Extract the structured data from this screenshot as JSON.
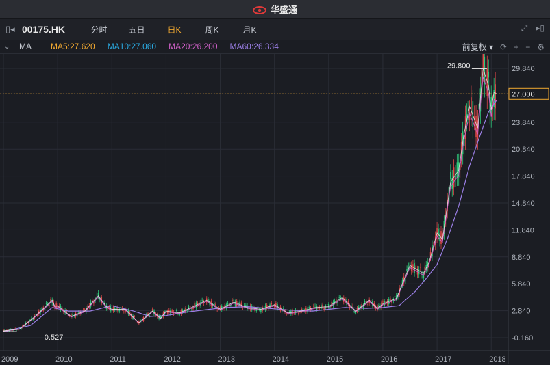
{
  "app": {
    "title": "华盛通"
  },
  "header": {
    "symbol": "00175.HK",
    "tabs": [
      "分时",
      "五日",
      "日K",
      "周K",
      "月K"
    ],
    "active_tab": "日K"
  },
  "indicators": {
    "name": "MA",
    "ma5": "MA5:27.620",
    "ma10": "MA10:27.060",
    "ma20": "MA20:26.200",
    "ma60": "MA60:26.334",
    "adjust": "前复权"
  },
  "colors": {
    "ma5": "#f0a830",
    "ma10": "#2aa9e0",
    "ma20": "#d060c8",
    "ma60": "#9b7fe6",
    "up": "#e04848",
    "down": "#2ec87a",
    "active_tab": "#f0a830",
    "last_price": "#f0a830"
  },
  "chart_data": {
    "type": "line",
    "y_ticks": [
      "29.840",
      "27.000",
      "23.840",
      "20.840",
      "17.840",
      "14.840",
      "11.840",
      "8.840",
      "5.840",
      "2.840",
      "-0.160"
    ],
    "ylim": [
      -0.16,
      30.6
    ],
    "x_ticks": [
      "2009",
      "2010",
      "2011",
      "2012",
      "2013",
      "2014",
      "2015",
      "2016",
      "2017",
      "2018"
    ],
    "annotations": {
      "high": "29.800",
      "low": "0.527",
      "last_price": "27.000"
    },
    "series": [
      {
        "key": "price",
        "x": [
          2009.0,
          2009.3,
          2009.6,
          2009.9,
          2009.95,
          2010.0,
          2010.25,
          2010.5,
          2010.75,
          2010.9,
          2011.0,
          2011.25,
          2011.5,
          2011.75,
          2011.9,
          2012.0,
          2012.25,
          2012.5,
          2012.75,
          2013.0,
          2013.25,
          2013.5,
          2013.75,
          2014.0,
          2014.25,
          2014.5,
          2014.75,
          2015.0,
          2015.25,
          2015.5,
          2015.75,
          2015.9,
          2016.0,
          2016.25,
          2016.5,
          2016.75,
          2016.85,
          2017.0,
          2017.1,
          2017.25,
          2017.4,
          2017.5,
          2017.6,
          2017.75,
          2017.85,
          2017.95,
          2018.0,
          2018.05,
          2018.1
        ],
        "values": [
          0.6,
          0.8,
          2.3,
          4.0,
          3.3,
          3.4,
          2.2,
          2.8,
          4.5,
          3.3,
          3.0,
          3.0,
          1.5,
          2.8,
          2.0,
          2.8,
          2.6,
          3.3,
          4.0,
          3.0,
          3.8,
          3.2,
          3.0,
          3.5,
          2.6,
          2.8,
          3.2,
          3.3,
          4.3,
          2.8,
          4.0,
          3.1,
          3.6,
          4.2,
          7.9,
          7.0,
          8.2,
          11.5,
          10.8,
          17.2,
          18.5,
          22.6,
          25.6,
          23.2,
          29.8,
          27.9,
          25.2,
          27.2,
          27.0
        ]
      },
      {
        "key": "ma60",
        "x": [
          2009.0,
          2009.5,
          2009.9,
          2010.2,
          2010.6,
          2011.0,
          2011.4,
          2011.7,
          2012.0,
          2012.4,
          2012.8,
          2013.1,
          2013.5,
          2013.9,
          2014.3,
          2014.7,
          2015.0,
          2015.3,
          2015.7,
          2016.0,
          2016.3,
          2016.6,
          2016.85,
          2017.0,
          2017.2,
          2017.4,
          2017.6,
          2017.8,
          2017.95,
          2018.1
        ],
        "values": [
          0.5,
          1.2,
          3.2,
          2.8,
          2.8,
          3.4,
          2.8,
          2.2,
          2.3,
          2.7,
          3.0,
          3.2,
          3.3,
          3.1,
          2.9,
          2.8,
          3.0,
          3.2,
          3.1,
          3.2,
          3.4,
          5.0,
          6.8,
          8.0,
          11.0,
          14.5,
          19.0,
          22.5,
          25.0,
          26.3
        ]
      }
    ]
  }
}
